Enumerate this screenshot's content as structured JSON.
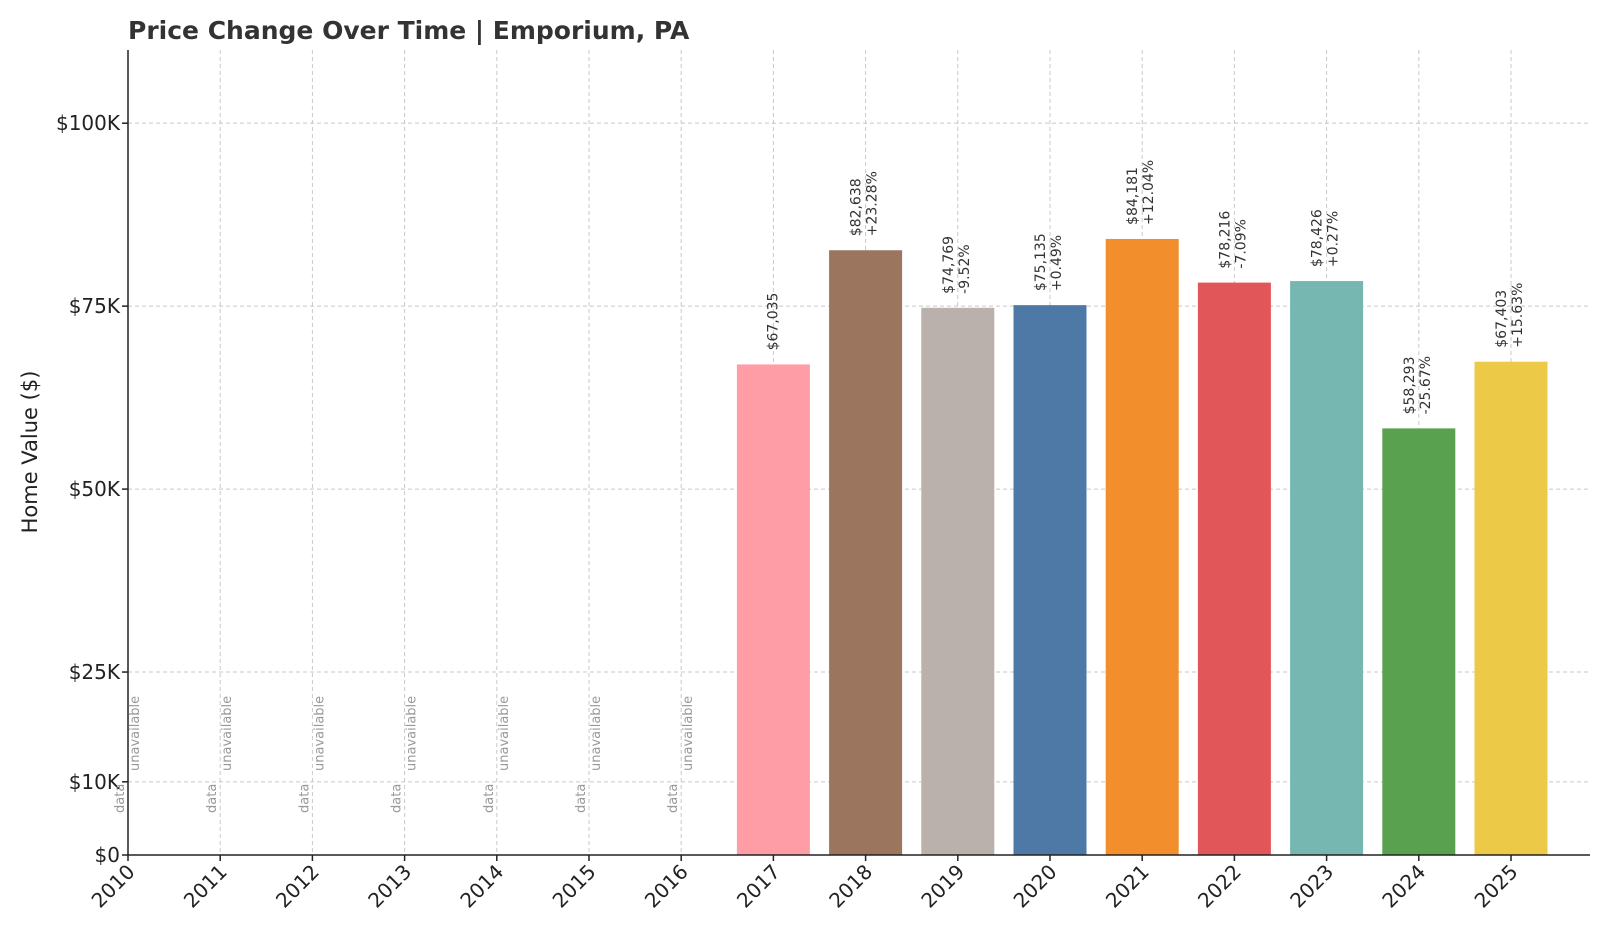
{
  "chart_data": {
    "type": "bar",
    "title": "Price Change Over Time | Emporium, PA",
    "xlabel": "",
    "ylabel": "Home Value ($)",
    "ylim": [
      0,
      110000
    ],
    "yticks": [
      {
        "value": 0,
        "label": "$0"
      },
      {
        "value": 10000,
        "label": "$10K"
      },
      {
        "value": 25000,
        "label": "$25K"
      },
      {
        "value": 50000,
        "label": "$50K"
      },
      {
        "value": 75000,
        "label": "$75K"
      },
      {
        "value": 100000,
        "label": "$100K"
      }
    ],
    "grid": true,
    "unavailable_label": [
      "data",
      "unavailable"
    ],
    "bars": [
      {
        "year": "2010",
        "value": null,
        "value_label": "",
        "change_label": "",
        "color": ""
      },
      {
        "year": "2011",
        "value": null,
        "value_label": "",
        "change_label": "",
        "color": ""
      },
      {
        "year": "2012",
        "value": null,
        "value_label": "",
        "change_label": "",
        "color": ""
      },
      {
        "year": "2013",
        "value": null,
        "value_label": "",
        "change_label": "",
        "color": ""
      },
      {
        "year": "2014",
        "value": null,
        "value_label": "",
        "change_label": "",
        "color": ""
      },
      {
        "year": "2015",
        "value": null,
        "value_label": "",
        "change_label": "",
        "color": ""
      },
      {
        "year": "2016",
        "value": null,
        "value_label": "",
        "change_label": "",
        "color": ""
      },
      {
        "year": "2017",
        "value": 67035,
        "value_label": "$67,035",
        "change_label": "",
        "color": "#ff9da7"
      },
      {
        "year": "2018",
        "value": 82638,
        "value_label": "$82,638",
        "change_label": "+23.28%",
        "color": "#9c755f"
      },
      {
        "year": "2019",
        "value": 74769,
        "value_label": "$74,769",
        "change_label": "-9.52%",
        "color": "#bab0ac"
      },
      {
        "year": "2020",
        "value": 75135,
        "value_label": "$75,135",
        "change_label": "+0.49%",
        "color": "#4e79a7"
      },
      {
        "year": "2021",
        "value": 84181,
        "value_label": "$84,181",
        "change_label": "+12.04%",
        "color": "#f28e2b"
      },
      {
        "year": "2022",
        "value": 78216,
        "value_label": "$78,216",
        "change_label": "-7.09%",
        "color": "#e15759"
      },
      {
        "year": "2023",
        "value": 78426,
        "value_label": "$78,426",
        "change_label": "+0.27%",
        "color": "#76b7b2"
      },
      {
        "year": "2024",
        "value": 58293,
        "value_label": "$58,293",
        "change_label": "-25.67%",
        "color": "#59a14f"
      },
      {
        "year": "2025",
        "value": 67403,
        "value_label": "$67,403",
        "change_label": "+15.63%",
        "color": "#edc948"
      }
    ]
  }
}
